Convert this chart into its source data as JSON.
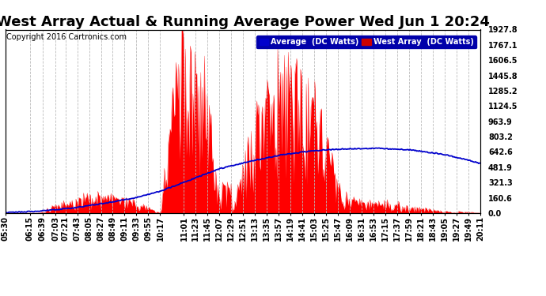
{
  "title": "West Array Actual & Running Average Power Wed Jun 1 20:24",
  "copyright": "Copyright 2016 Cartronics.com",
  "legend_avg": "Average  (DC Watts)",
  "legend_west": "West Array  (DC Watts)",
  "ymax": 1927.8,
  "yticks": [
    0.0,
    160.6,
    321.3,
    481.9,
    642.6,
    803.2,
    963.9,
    1124.5,
    1285.2,
    1445.8,
    1606.5,
    1767.1,
    1927.8
  ],
  "bg_color": "#ffffff",
  "plot_bg_color": "#ffffff",
  "bar_color": "#ff0000",
  "avg_color": "#0000cc",
  "title_fontsize": 13,
  "axis_fontsize": 7,
  "copyright_fontsize": 7,
  "xtick_labels": [
    "05:30",
    "06:15",
    "06:39",
    "07:03",
    "07:21",
    "07:43",
    "08:05",
    "08:27",
    "08:49",
    "09:11",
    "09:33",
    "09:55",
    "10:17",
    "11:01",
    "11:23",
    "11:45",
    "12:07",
    "12:29",
    "12:51",
    "13:13",
    "13:35",
    "13:57",
    "14:19",
    "14:41",
    "15:03",
    "15:25",
    "15:47",
    "16:09",
    "16:31",
    "16:53",
    "17:15",
    "17:37",
    "17:59",
    "18:21",
    "18:43",
    "19:05",
    "19:27",
    "19:49",
    "20:11"
  ],
  "grid_color": "#bbbbbb",
  "grid_linestyle": "--",
  "legend_bg": "#0000aa",
  "legend_avg_color": "#0000cc",
  "legend_west_color": "#cc0000"
}
